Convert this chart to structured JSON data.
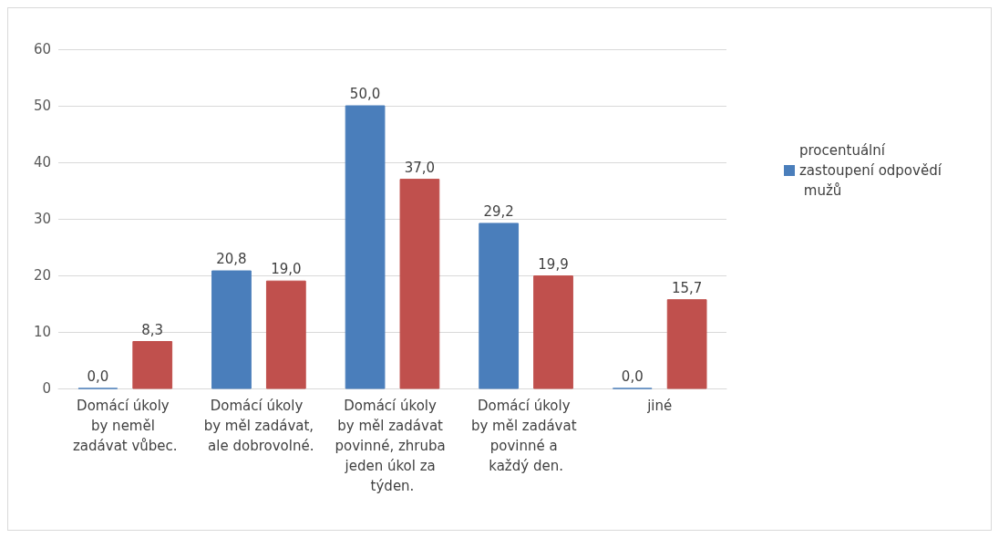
{
  "chart_data": {
    "type": "bar",
    "categories": [
      "Domácí úkoly by neměl zadávat vůbec.",
      "Domácí úkoly by měl zadávat, ale dobrovolné.",
      "Domácí úkoly by měl zadávat povinné, zhruba jeden úkol za týden.",
      "Domácí úkoly by měl zadávat povinné a každý den.",
      "jiné"
    ],
    "series": [
      {
        "name": "procentuální zastoupení odpovědí mužů",
        "color": "#4a7ebb",
        "values": [
          0.0,
          20.8,
          50.0,
          29.2,
          0.0
        ],
        "value_labels": [
          "0,0",
          "20,8",
          "50,0",
          "29,2",
          "0,0"
        ]
      },
      {
        "color": "#c0504d",
        "values": [
          8.3,
          19.0,
          37.0,
          19.9,
          15.7
        ],
        "value_labels": [
          "8,3",
          "19,0",
          "37,0",
          "19,9",
          "15,7"
        ]
      }
    ],
    "ylim": [
      0,
      60
    ],
    "yticks": [
      0,
      10,
      20,
      30,
      40,
      50,
      60
    ],
    "grid": "y",
    "legend": "right"
  }
}
